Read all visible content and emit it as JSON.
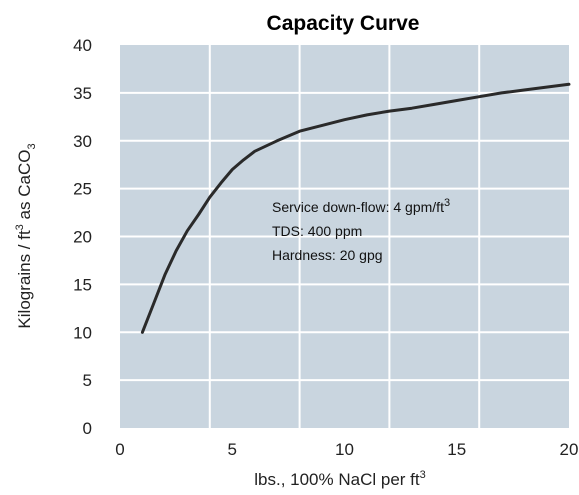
{
  "chart_data": {
    "type": "line",
    "title": "Capacity Curve",
    "xlabel": {
      "main": "lbs., 100%  NaCl per ft",
      "sup": "3"
    },
    "ylabel": {
      "a": "Kilograins / ft",
      "a_sup": "3",
      "b": " as CaCO",
      "b_sub": "3"
    },
    "xlim": [
      0,
      20
    ],
    "ylim": [
      0,
      40
    ],
    "x_ticks": [
      0,
      5,
      10,
      15,
      20
    ],
    "y_ticks": [
      0,
      5,
      10,
      15,
      20,
      25,
      30,
      35,
      40
    ],
    "grid": true,
    "colors": {
      "plot_bg": "#c9d5df",
      "grid": "#ffffff",
      "line": "#2a2a2a"
    },
    "annotations": [
      {
        "text": "Service down-flow: 4 gpm/ft",
        "sup": "3"
      },
      {
        "text": "TDS: 400 ppm"
      },
      {
        "text": "Hardness: 20 gpg"
      }
    ],
    "series": [
      {
        "x": [
          1,
          1.5,
          2,
          2.5,
          3,
          3.5,
          4,
          4.5,
          5,
          5.5,
          6,
          7,
          8,
          9,
          10,
          11,
          12,
          13,
          14,
          15,
          16,
          17,
          18,
          19,
          20
        ],
        "values": [
          10,
          13,
          16,
          18.5,
          20.6,
          22.3,
          24.1,
          25.6,
          27,
          28,
          28.9,
          30,
          31,
          31.6,
          32.2,
          32.7,
          33.1,
          33.4,
          33.8,
          34.2,
          34.6,
          35,
          35.3,
          35.6,
          35.9
        ]
      }
    ]
  }
}
